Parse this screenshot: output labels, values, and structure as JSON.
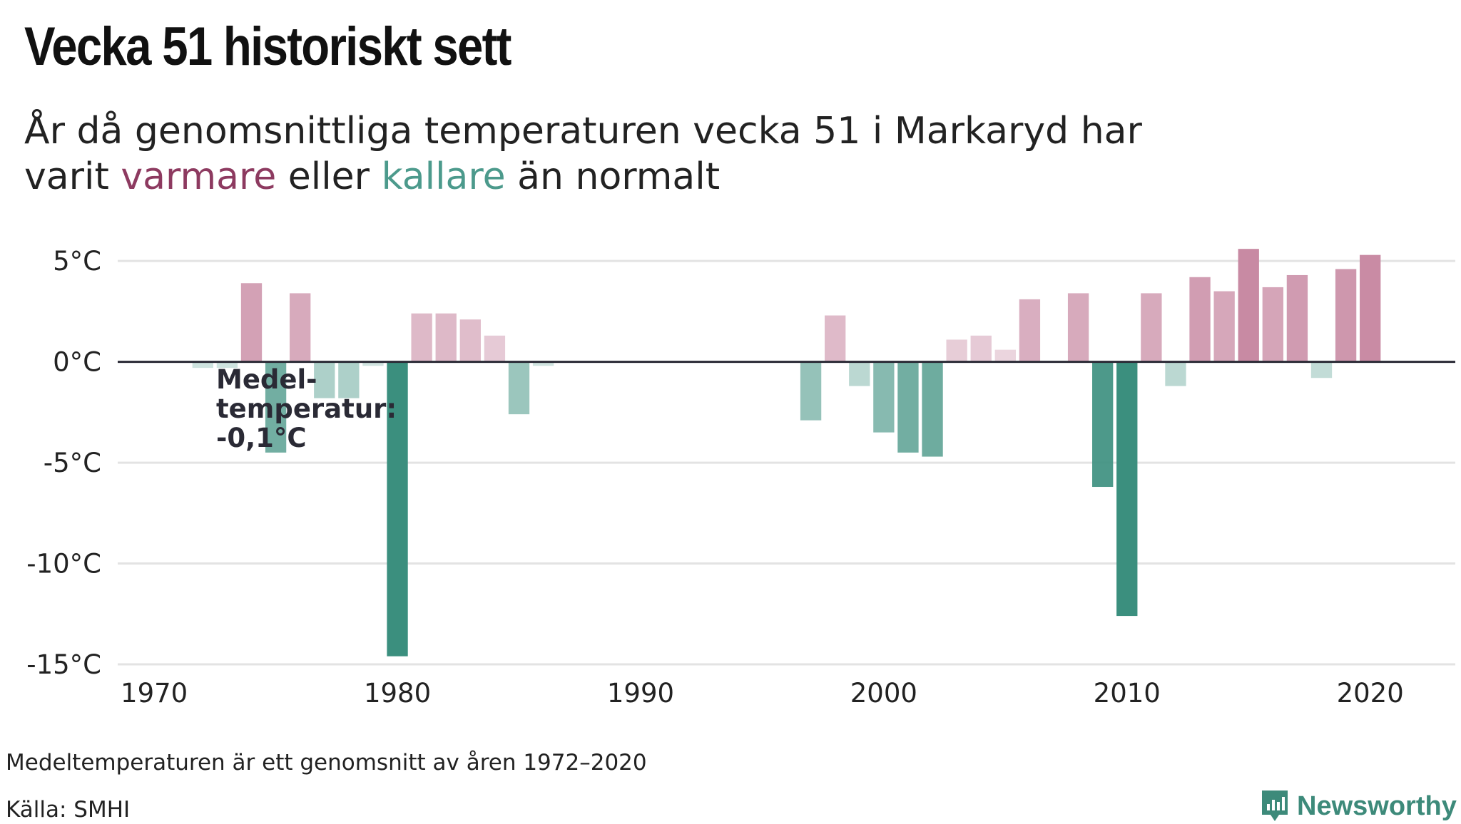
{
  "title": "Vecka 51 historiskt sett",
  "subtitle": {
    "line1": "År då genomsnittliga temperaturen vecka 51 i Markaryd har",
    "line2_prefix": "varit ",
    "warm_word": "varmare",
    "middle": " eller ",
    "cold_word": "kallare",
    "line2_suffix": " än normalt"
  },
  "annotation": [
    "Medel-",
    "temperatur:",
    "-0,1°C"
  ],
  "footnote": "Medeltemperaturen är ett genomsnitt av åren 1972–2020",
  "source": "Källa: SMHI",
  "brand": "Newsworthy",
  "colors": {
    "warm": "#c88aa3",
    "cold": "#3b8f7e",
    "zero_line": "#2a2a35",
    "grid": "#e3e3e3",
    "warm_text": "#8d3a60",
    "cold_text": "#4c9a8c"
  },
  "chart_data": {
    "type": "bar",
    "title": "Vecka 51 historiskt sett",
    "xlabel": "",
    "ylabel": "",
    "x_ticks": [
      1970,
      1980,
      1990,
      2000,
      2010,
      2020
    ],
    "y_ticks": [
      5,
      0,
      -5,
      -10,
      -15
    ],
    "y_tick_labels": [
      "5°C",
      "0°C",
      "-5°C",
      "-10°C",
      "-15°C"
    ],
    "xlim": [
      1968.5,
      2023.5
    ],
    "ylim": [
      -15,
      5.5
    ],
    "grid": true,
    "reference_line": {
      "label": "Medeltemperatur",
      "value": -0.1
    },
    "x": [
      1972,
      1973,
      1974,
      1975,
      1976,
      1977,
      1978,
      1979,
      1980,
      1981,
      1982,
      1983,
      1984,
      1985,
      1986,
      1997,
      1998,
      1999,
      2000,
      2001,
      2002,
      2003,
      2004,
      2005,
      2006,
      2008,
      2009,
      2010,
      2011,
      2012,
      2013,
      2014,
      2015,
      2016,
      2017,
      2018,
      2019,
      2020
    ],
    "values": [
      -0.3,
      -0.3,
      3.9,
      -4.5,
      3.4,
      -1.8,
      -1.8,
      -0.2,
      -14.6,
      2.4,
      2.4,
      2.1,
      1.3,
      -2.6,
      -0.2,
      -2.9,
      2.3,
      -1.2,
      -3.5,
      -4.5,
      -4.7,
      1.1,
      1.3,
      0.6,
      3.1,
      3.4,
      -6.2,
      -12.6,
      3.4,
      -1.2,
      4.2,
      3.5,
      5.6,
      3.7,
      4.3,
      -0.8,
      4.6,
      5.3
    ]
  }
}
